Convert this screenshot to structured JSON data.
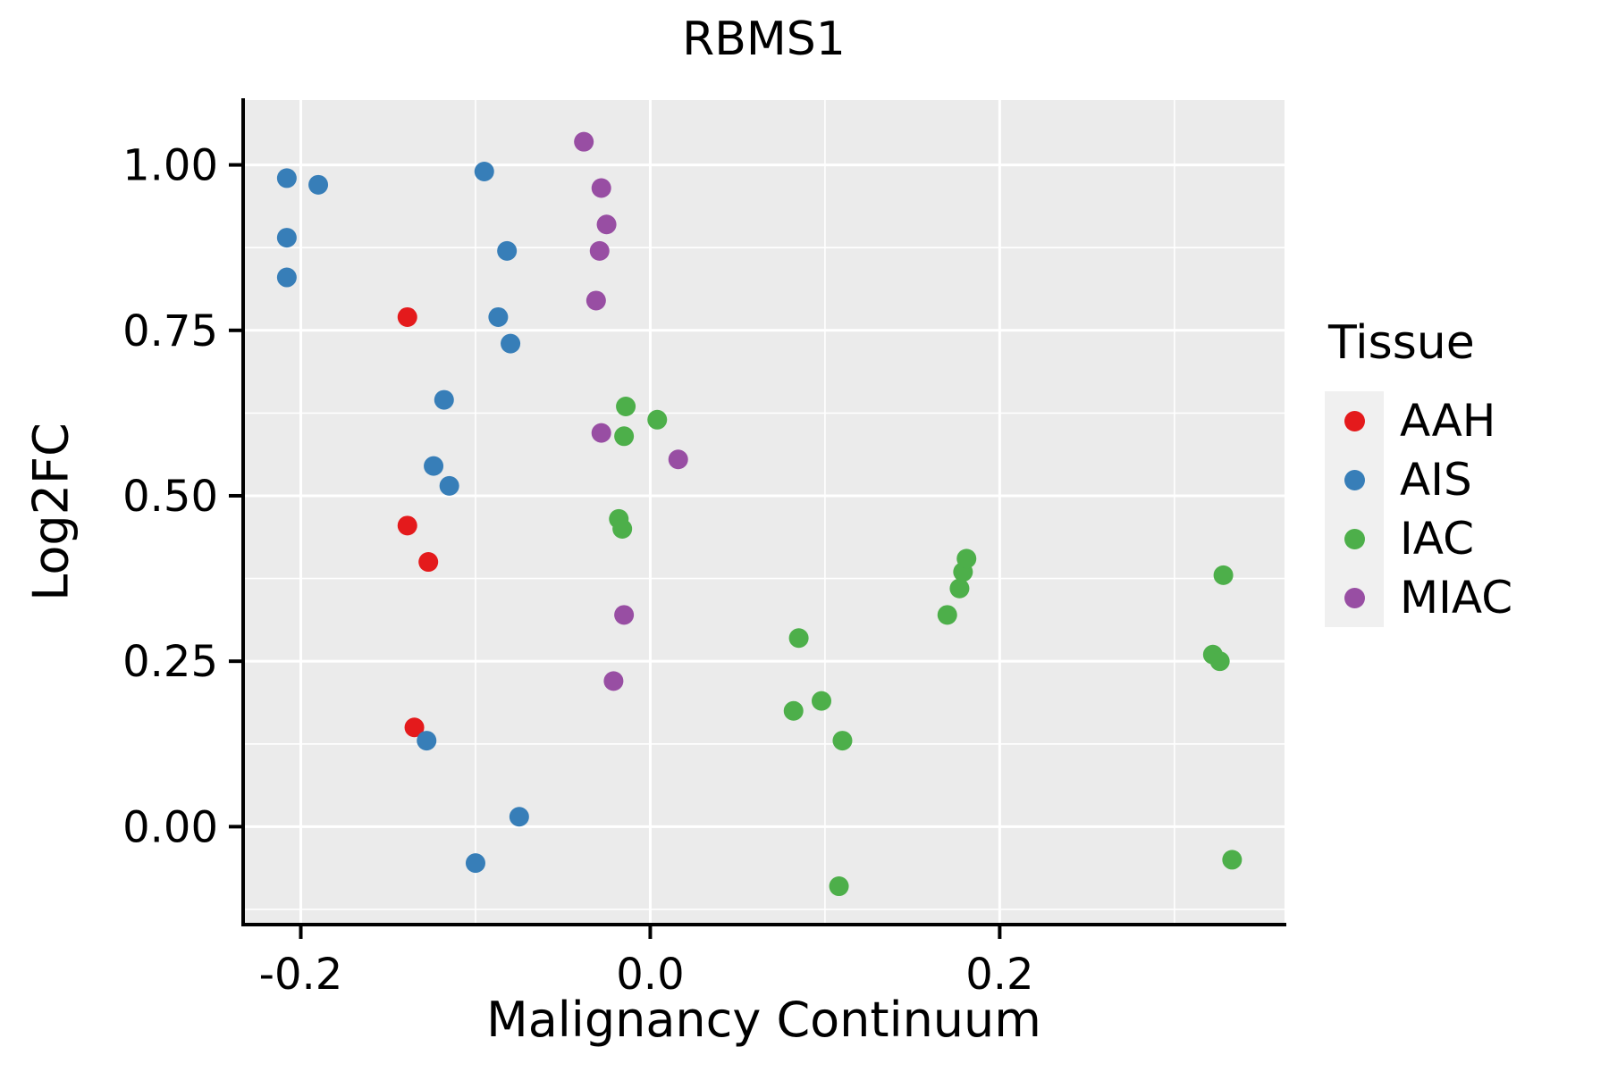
{
  "chart_data": {
    "type": "scatter",
    "title": "RBMS1",
    "xlabel": "Malignancy Continuum",
    "ylabel": "Log2FC",
    "legend_title": "Tissue",
    "legend_position": "right",
    "grid": true,
    "xlim": [
      -0.233,
      0.363
    ],
    "ylim": [
      -0.148,
      1.098
    ],
    "x_ticks": {
      "values": [
        -0.2,
        0.0,
        0.2
      ],
      "labels": [
        "-0.2",
        "0.0",
        "0.2"
      ]
    },
    "y_ticks": {
      "values": [
        0.0,
        0.25,
        0.5,
        0.75,
        1.0
      ],
      "labels": [
        "0.00",
        "0.25",
        "0.50",
        "0.75",
        "1.00"
      ]
    },
    "x_minor": [
      -0.1,
      0.1,
      0.3
    ],
    "y_minor": [
      -0.125,
      0.125,
      0.375,
      0.625,
      0.875
    ],
    "colors": {
      "panel_background": "#EBEBEB",
      "grid": "#FFFFFF",
      "axis": "#000000",
      "legend_key_background": "#F0F0F0"
    },
    "series": [
      {
        "name": "AAH",
        "color": "#E41A1C",
        "points": [
          [
            -0.139,
            0.77
          ],
          [
            -0.139,
            0.455
          ],
          [
            -0.127,
            0.4
          ],
          [
            -0.135,
            0.15
          ]
        ]
      },
      {
        "name": "AIS",
        "color": "#377EB8",
        "points": [
          [
            -0.208,
            0.98
          ],
          [
            -0.19,
            0.97
          ],
          [
            -0.208,
            0.89
          ],
          [
            -0.208,
            0.83
          ],
          [
            -0.095,
            0.99
          ],
          [
            -0.082,
            0.87
          ],
          [
            -0.087,
            0.77
          ],
          [
            -0.08,
            0.73
          ],
          [
            -0.118,
            0.645
          ],
          [
            -0.124,
            0.545
          ],
          [
            -0.115,
            0.515
          ],
          [
            -0.128,
            0.13
          ],
          [
            -0.075,
            0.015
          ],
          [
            -0.1,
            -0.055
          ]
        ]
      },
      {
        "name": "IAC",
        "color": "#4DAF4A",
        "points": [
          [
            -0.014,
            0.635
          ],
          [
            -0.015,
            0.59
          ],
          [
            0.004,
            0.615
          ],
          [
            -0.018,
            0.465
          ],
          [
            -0.016,
            0.45
          ],
          [
            0.085,
            0.285
          ],
          [
            0.082,
            0.175
          ],
          [
            0.098,
            0.19
          ],
          [
            0.11,
            0.13
          ],
          [
            0.108,
            -0.09
          ],
          [
            0.17,
            0.32
          ],
          [
            0.177,
            0.36
          ],
          [
            0.179,
            0.385
          ],
          [
            0.181,
            0.405
          ],
          [
            0.328,
            0.38
          ],
          [
            0.322,
            0.26
          ],
          [
            0.326,
            0.25
          ],
          [
            0.333,
            -0.05
          ]
        ]
      },
      {
        "name": "MIAC",
        "color": "#984EA3",
        "points": [
          [
            -0.038,
            1.035
          ],
          [
            -0.028,
            0.965
          ],
          [
            -0.025,
            0.91
          ],
          [
            -0.029,
            0.87
          ],
          [
            -0.031,
            0.795
          ],
          [
            -0.028,
            0.595
          ],
          [
            0.016,
            0.555
          ],
          [
            -0.015,
            0.32
          ],
          [
            -0.021,
            0.22
          ]
        ]
      }
    ]
  }
}
